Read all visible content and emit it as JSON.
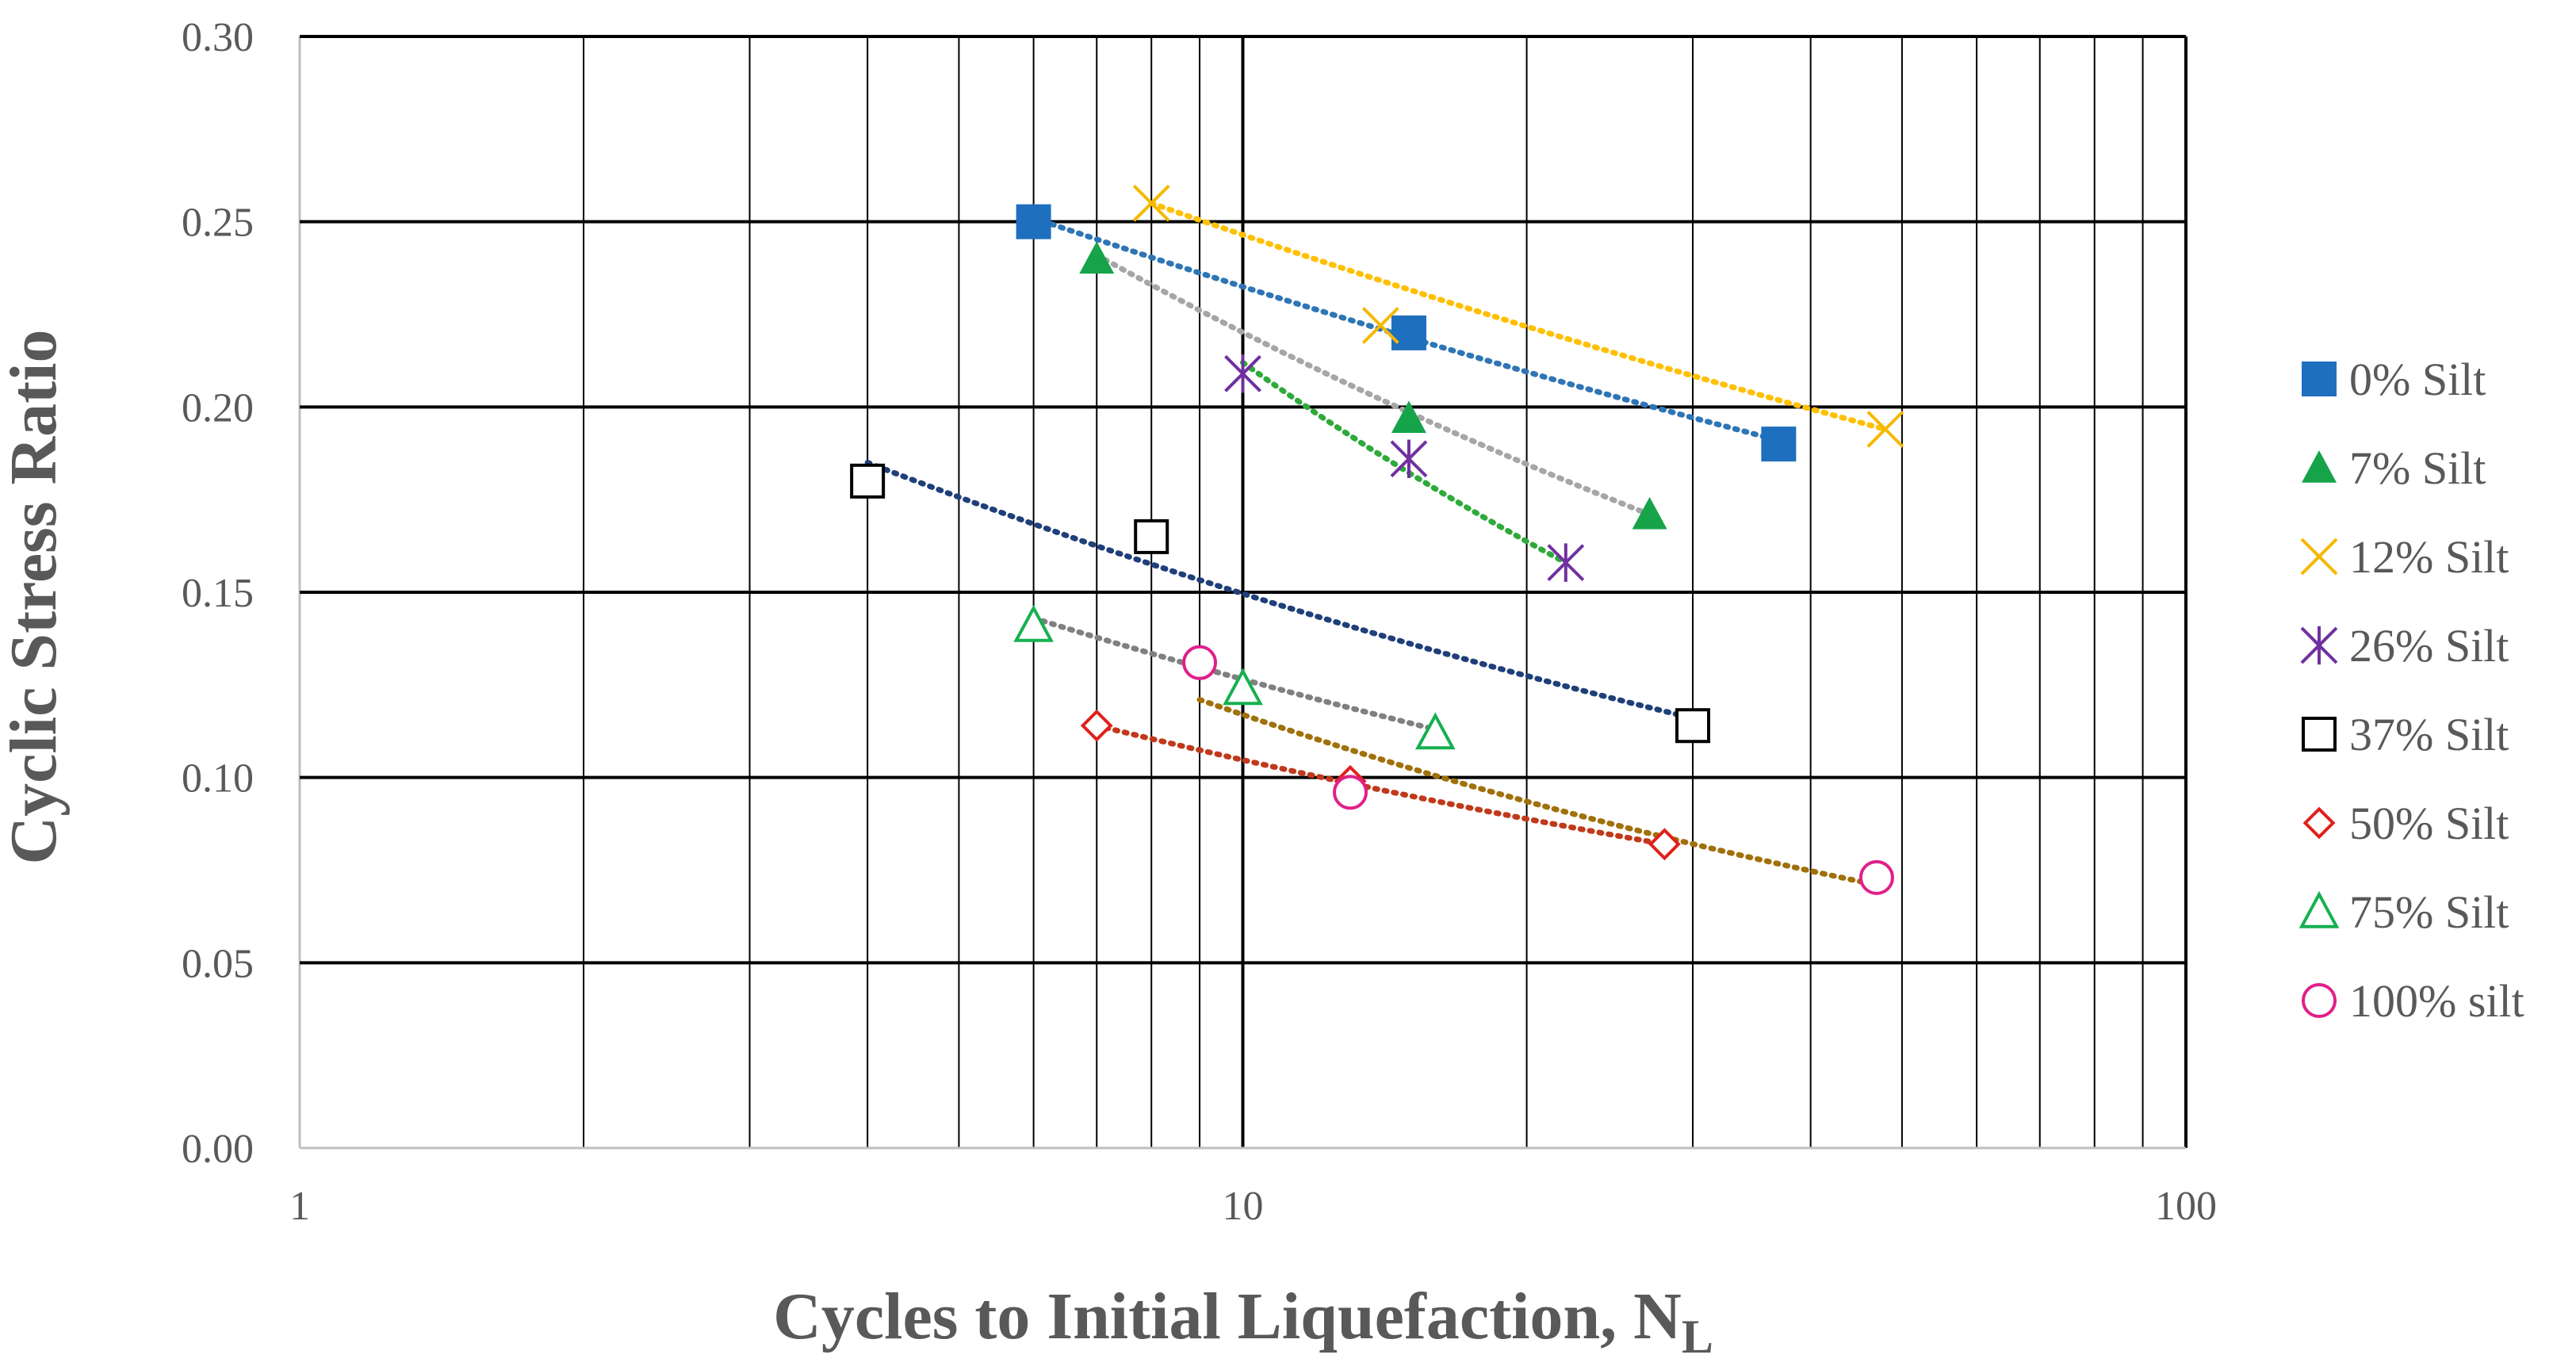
{
  "chart_data": {
    "type": "scatter",
    "xscale": "log",
    "xlim": [
      1,
      100
    ],
    "ylim": [
      0,
      0.3
    ],
    "xlabel": "Cycles to Initial Liquefaction, N",
    "xlabel_subscript": "L",
    "ylabel": "Cyclic Stress Ratio",
    "x_tick_labels": [
      "1",
      "10",
      "100"
    ],
    "x_ticks": [
      1,
      10,
      100
    ],
    "y_tick_labels": [
      "0.00",
      "0.05",
      "0.10",
      "0.15",
      "0.20",
      "0.25",
      "0.30"
    ],
    "y_ticks": [
      0,
      0.05,
      0.1,
      0.15,
      0.2,
      0.25,
      0.3
    ],
    "grid": true,
    "legend_position": "right",
    "series": [
      {
        "name": "0% Silt",
        "marker": "square-filled",
        "color": "#1F6FBF",
        "trend_color": "#2E75B6",
        "x": [
          6,
          15,
          37
        ],
        "y": [
          0.25,
          0.22,
          0.19
        ],
        "trend": [
          [
            6,
            0.251
          ],
          [
            37,
            0.191
          ]
        ]
      },
      {
        "name": "7% Silt",
        "marker": "triangle-filled",
        "color": "#16A34A",
        "trend_color": "#A6A6A6",
        "x": [
          7,
          15,
          27
        ],
        "y": [
          0.24,
          0.197,
          0.171
        ],
        "trend": [
          [
            7,
            0.241
          ],
          [
            27,
            0.171
          ]
        ]
      },
      {
        "name": "12% Silt",
        "marker": "x",
        "color": "#F5B800",
        "trend_color": "#FFC000",
        "x": [
          8,
          14,
          48
        ],
        "y": [
          0.255,
          0.222,
          0.194
        ],
        "trend": [
          [
            8,
            0.255
          ],
          [
            48,
            0.194
          ]
        ]
      },
      {
        "name": "26% Silt",
        "marker": "star",
        "color": "#7030A0",
        "trend_color": "#2EAA3A",
        "x": [
          10,
          15,
          22
        ],
        "y": [
          0.209,
          0.186,
          0.158
        ],
        "trend": [
          [
            10,
            0.212
          ],
          [
            22,
            0.158
          ]
        ]
      },
      {
        "name": "37% Silt",
        "marker": "square-open",
        "color": "#000000",
        "trend_color": "#1F3F7A",
        "x": [
          4,
          8,
          30
        ],
        "y": [
          0.18,
          0.165,
          0.114
        ],
        "trend": [
          [
            4,
            0.185
          ],
          [
            30,
            0.116
          ]
        ]
      },
      {
        "name": "50% Silt",
        "marker": "diamond-open",
        "color": "#E0201B",
        "trend_color": "#C0391B",
        "x": [
          7,
          13,
          28
        ],
        "y": [
          0.114,
          0.099,
          0.082
        ],
        "trend": [
          [
            7,
            0.114
          ],
          [
            28,
            0.082
          ]
        ]
      },
      {
        "name": "75% Silt",
        "marker": "triangle-open",
        "color": "#16B050",
        "trend_color": "#808080",
        "x": [
          6,
          10,
          16
        ],
        "y": [
          0.141,
          0.124,
          0.112
        ],
        "trend": [
          [
            6,
            0.143
          ],
          [
            16,
            0.113
          ]
        ]
      },
      {
        "name": "100% silt",
        "marker": "circle-open",
        "color": "#E0208A",
        "trend_color": "#A0700A",
        "x": [
          9,
          13,
          47
        ],
        "y": [
          0.131,
          0.096,
          0.073
        ],
        "trend": [
          [
            9,
            0.121
          ],
          [
            47,
            0.071
          ]
        ]
      }
    ]
  }
}
